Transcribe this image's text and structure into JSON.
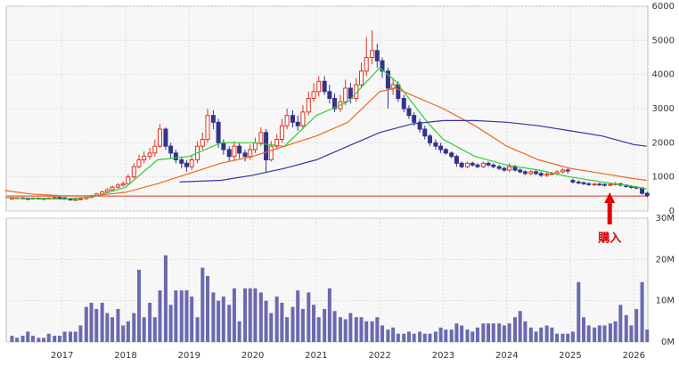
{
  "chart_data": {
    "type": "candlestick",
    "x": [
      2016.21,
      2016.29,
      2016.38,
      2016.46,
      2016.54,
      2016.63,
      2016.71,
      2016.79,
      2016.88,
      2016.96,
      2017.04,
      2017.13,
      2017.21,
      2017.29,
      2017.38,
      2017.46,
      2017.54,
      2017.63,
      2017.71,
      2017.79,
      2017.88,
      2017.96,
      2018.04,
      2018.13,
      2018.21,
      2018.29,
      2018.38,
      2018.46,
      2018.54,
      2018.63,
      2018.71,
      2018.79,
      2018.88,
      2018.96,
      2019.04,
      2019.13,
      2019.21,
      2019.29,
      2019.38,
      2019.46,
      2019.54,
      2019.63,
      2019.71,
      2019.79,
      2019.88,
      2019.96,
      2020.04,
      2020.13,
      2020.21,
      2020.29,
      2020.38,
      2020.46,
      2020.54,
      2020.63,
      2020.71,
      2020.79,
      2020.88,
      2020.96,
      2021.04,
      2021.13,
      2021.21,
      2021.29,
      2021.38,
      2021.46,
      2021.54,
      2021.63,
      2021.71,
      2021.79,
      2021.88,
      2021.96,
      2022.04,
      2022.13,
      2022.21,
      2022.29,
      2022.38,
      2022.46,
      2022.54,
      2022.63,
      2022.71,
      2022.79,
      2022.88,
      2022.96,
      2023.04,
      2023.13,
      2023.21,
      2023.29,
      2023.38,
      2023.46,
      2023.54,
      2023.63,
      2023.71,
      2023.79,
      2023.88,
      2023.96,
      2024.04,
      2024.13,
      2024.21,
      2024.29,
      2024.38,
      2024.46,
      2024.54,
      2024.63,
      2024.71,
      2024.79,
      2024.88,
      2024.96,
      2025.04,
      2025.13,
      2025.21,
      2025.29,
      2025.38,
      2025.46,
      2025.54,
      2025.63,
      2025.71,
      2025.79,
      2025.88,
      2025.96,
      2026.04,
      2026.13,
      2026.21
    ],
    "open": [
      370,
      380,
      390,
      370,
      360,
      380,
      370,
      360,
      380,
      400,
      390,
      350,
      330,
      340,
      360,
      400,
      450,
      500,
      560,
      620,
      700,
      760,
      800,
      1000,
      1300,
      1500,
      1600,
      1700,
      1900,
      2400,
      1900,
      1700,
      1500,
      1400,
      1300,
      1500,
      1900,
      2100,
      2800,
      2600,
      2000,
      1800,
      1600,
      1900,
      1700,
      1600,
      1800,
      2000,
      2300,
      1500,
      1900,
      2100,
      2500,
      2800,
      2600,
      2500,
      2900,
      3300,
      3500,
      3800,
      3500,
      3300,
      3000,
      3200,
      3600,
      3300,
      3700,
      4100,
      4500,
      4700,
      4400,
      4100,
      3600,
      3700,
      3300,
      3000,
      2800,
      2600,
      2400,
      2200,
      2000,
      1900,
      1800,
      1700,
      1600,
      1400,
      1300,
      1400,
      1350,
      1300,
      1400,
      1350,
      1300,
      1250,
      1200,
      1300,
      1200,
      1150,
      1100,
      1150,
      1100,
      1050,
      1080,
      1100,
      1150,
      1200,
      900,
      850,
      830,
      800,
      780,
      790,
      780,
      760,
      780,
      800,
      760,
      720,
      700,
      680,
      520
    ],
    "high": [
      400,
      410,
      410,
      390,
      400,
      400,
      390,
      400,
      420,
      420,
      400,
      370,
      360,
      380,
      420,
      480,
      530,
      600,
      670,
      750,
      820,
      870,
      1080,
      1400,
      1650,
      1750,
      1850,
      2100,
      2550,
      2450,
      2000,
      1800,
      1600,
      1500,
      1650,
      2050,
      2300,
      3000,
      2950,
      2700,
      2100,
      1900,
      2050,
      2000,
      1800,
      1950,
      2150,
      2450,
      2400,
      2050,
      2250,
      2700,
      3000,
      2950,
      2800,
      3100,
      3500,
      3750,
      3950,
      3950,
      3700,
      3450,
      3400,
      3850,
      3750,
      3900,
      4350,
      5100,
      5300,
      4900,
      4500,
      4200,
      3900,
      3800,
      3400,
      3100,
      2900,
      2700,
      2500,
      2250,
      2100,
      2000,
      1850,
      1750,
      1650,
      1450,
      1450,
      1450,
      1400,
      1450,
      1450,
      1400,
      1350,
      1300,
      1400,
      1350,
      1250,
      1200,
      1200,
      1200,
      1150,
      1150,
      1150,
      1200,
      1250,
      1250,
      950,
      900,
      870,
      840,
      830,
      830,
      810,
      820,
      850,
      830,
      790,
      760,
      730,
      700,
      560
    ],
    "low": [
      350,
      360,
      350,
      340,
      340,
      350,
      340,
      340,
      360,
      370,
      330,
      310,
      310,
      320,
      340,
      380,
      430,
      480,
      530,
      590,
      660,
      720,
      780,
      950,
      1250,
      1400,
      1500,
      1600,
      1850,
      1800,
      1550,
      1400,
      1250,
      1150,
      1200,
      1400,
      1800,
      2000,
      2400,
      1850,
      1650,
      1450,
      1500,
      1550,
      1450,
      1500,
      1700,
      1900,
      1150,
      1450,
      1800,
      2000,
      2400,
      2450,
      2350,
      2400,
      2800,
      3200,
      3350,
      3400,
      3150,
      2900,
      2900,
      3100,
      3150,
      3200,
      3600,
      3950,
      4300,
      4200,
      3900,
      3000,
      3400,
      3200,
      2900,
      2700,
      2500,
      2300,
      2100,
      1900,
      1800,
      1700,
      1650,
      1550,
      1300,
      1250,
      1250,
      1300,
      1250,
      1250,
      1300,
      1250,
      1200,
      1150,
      1150,
      1150,
      1100,
      1050,
      1050,
      1050,
      1000,
      1000,
      1050,
      1050,
      1100,
      1100,
      800,
      780,
      760,
      740,
      740,
      740,
      720,
      730,
      750,
      720,
      680,
      660,
      640,
      480,
      400
    ],
    "close": [
      380,
      390,
      370,
      360,
      380,
      370,
      360,
      380,
      400,
      390,
      350,
      330,
      340,
      360,
      400,
      450,
      500,
      560,
      620,
      700,
      760,
      800,
      1000,
      1300,
      1500,
      1600,
      1700,
      1900,
      2400,
      1900,
      1700,
      1500,
      1400,
      1300,
      1500,
      1900,
      2100,
      2800,
      2600,
      2000,
      1800,
      1600,
      1900,
      1700,
      1600,
      1800,
      2000,
      2300,
      1500,
      1900,
      2100,
      2500,
      2800,
      2600,
      2500,
      2900,
      3300,
      3500,
      3800,
      3500,
      3300,
      3000,
      3200,
      3600,
      3300,
      3700,
      4100,
      4500,
      4700,
      4400,
      4100,
      3600,
      3700,
      3300,
      3000,
      2800,
      2600,
      2400,
      2200,
      2000,
      1900,
      1800,
      1700,
      1600,
      1400,
      1300,
      1400,
      1350,
      1300,
      1400,
      1350,
      1300,
      1250,
      1200,
      1300,
      1200,
      1150,
      1100,
      1150,
      1100,
      1050,
      1080,
      1100,
      1150,
      1200,
      1180,
      850,
      830,
      800,
      780,
      790,
      780,
      760,
      780,
      800,
      760,
      720,
      700,
      680,
      520,
      450
    ],
    "volume": [
      1.5,
      1,
      1.5,
      2.5,
      1.5,
      1,
      1,
      2,
      1.5,
      1.5,
      2.5,
      2.5,
      2.5,
      4,
      8.5,
      9.5,
      8,
      9.5,
      7,
      6,
      8,
      4,
      5,
      7,
      17.5,
      6,
      9.5,
      6,
      12.5,
      21,
      9,
      12.5,
      12.5,
      12.5,
      11,
      6,
      18,
      16,
      12,
      10,
      11,
      9,
      13,
      5,
      13,
      13,
      13,
      12,
      10,
      7,
      11,
      9.5,
      6,
      8.5,
      12.5,
      8,
      12,
      9,
      6,
      8,
      13,
      7.5,
      6,
      5.5,
      7,
      6,
      6,
      5,
      5,
      6,
      4,
      3,
      3.5,
      2,
      2,
      2.5,
      2,
      2.5,
      2,
      2,
      2.5,
      3.5,
      3,
      3,
      4.5,
      4,
      3,
      2.5,
      3.5,
      4.5,
      4.5,
      4.5,
      4.5,
      4,
      4.5,
      6,
      7.5,
      5,
      3.5,
      2.5,
      3.5,
      4,
      3.5,
      2,
      2,
      2,
      2.5,
      14.5,
      6,
      4,
      3.5,
      4,
      4,
      4.5,
      5,
      9,
      6.5,
      4,
      8,
      14.5,
      3
    ],
    "up_color": "#e03020",
    "down_color": "#33338a",
    "volume_color": "#6a6ab0",
    "moving_averages": [
      {
        "color": "#33cc33",
        "x": [
          2016.1,
          2017.0,
          2017.5,
          2018.0,
          2018.5,
          2019.0,
          2019.5,
          2020.0,
          2020.5,
          2021.0,
          2021.5,
          2021.75,
          2022.0,
          2022.25,
          2022.5,
          2022.75,
          2023.0,
          2023.5,
          2024.0,
          2024.5,
          2025.0,
          2025.5,
          2026.0,
          2026.2
        ],
        "values": [
          400,
          350,
          420,
          700,
          1500,
          1600,
          2000,
          2000,
          1900,
          2800,
          3200,
          3700,
          4200,
          3800,
          3200,
          2600,
          2100,
          1600,
          1350,
          1200,
          1000,
          850,
          720,
          650
        ]
      },
      {
        "color": "#ee6622",
        "x": [
          2016.1,
          2016.5,
          2017.0,
          2017.5,
          2018.0,
          2018.5,
          2019.0,
          2019.5,
          2020.0,
          2020.5,
          2021.0,
          2021.5,
          2022.0,
          2022.25,
          2022.5,
          2023.0,
          2023.5,
          2024.0,
          2024.5,
          2025.0,
          2025.5,
          2026.0,
          2026.2
        ],
        "values": [
          600,
          500,
          450,
          450,
          550,
          800,
          1100,
          1400,
          1600,
          1900,
          2200,
          2600,
          3500,
          3600,
          3400,
          3000,
          2500,
          1900,
          1500,
          1250,
          1100,
          950,
          900
        ]
      },
      {
        "color": "#3333aa",
        "x": [
          2018.85,
          2019.5,
          2020.0,
          2020.5,
          2021.0,
          2021.5,
          2022.0,
          2022.5,
          2023.0,
          2023.5,
          2024.0,
          2024.5,
          2025.0,
          2025.5,
          2026.0,
          2026.2
        ],
        "values": [
          850,
          900,
          1050,
          1250,
          1500,
          1900,
          2300,
          2550,
          2650,
          2650,
          2600,
          2500,
          2350,
          2200,
          1950,
          1900
        ]
      }
    ],
    "reference_line": {
      "value": 440,
      "color": "#e03020"
    },
    "annotation": {
      "text": "購入",
      "x": 2025.62,
      "color": "#e00000"
    },
    "xlim": [
      2016.12,
      2026.22
    ],
    "xticks": [
      2017,
      2018,
      2019,
      2020,
      2021,
      2022,
      2023,
      2024,
      2025,
      2026
    ],
    "ylim": [
      0,
      6000
    ],
    "yticks": [
      0,
      1000,
      2000,
      3000,
      4000,
      5000,
      6000
    ],
    "volume_ylim": [
      0,
      30
    ],
    "volume_yticks": [
      {
        "value": 0,
        "label": "0M"
      },
      {
        "value": 10,
        "label": "10M"
      },
      {
        "value": 20,
        "label": "20M"
      },
      {
        "value": 30,
        "label": "30M"
      }
    ],
    "grid": true
  }
}
